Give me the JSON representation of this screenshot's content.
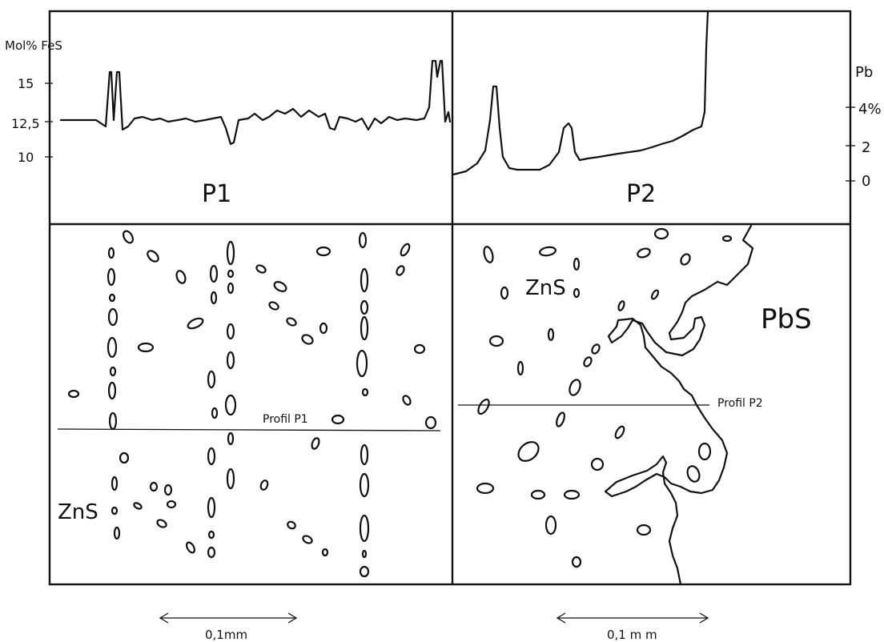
{
  "left_axis": {
    "unit_label": "Mol% FeS",
    "ticks": [
      "15",
      "12,5",
      "10"
    ]
  },
  "right_axis": {
    "element_label": "Pb",
    "ticks": [
      "4%",
      "2",
      "0"
    ]
  },
  "panels": {
    "p1": {
      "label": "P1",
      "phase_label": "ZnS",
      "profile_label": "Profil P1",
      "scale_label": "0,1mm"
    },
    "p2": {
      "label": "P2",
      "phase_label_left": "ZnS",
      "phase_label_right": "PbS",
      "profile_label": "Profil P2",
      "scale_label": "0,1 m m"
    }
  },
  "chart_data": [
    {
      "type": "line",
      "panel": "P1",
      "ylabel": "Mol% FeS",
      "y_ticks": [
        15,
        12.5,
        10
      ],
      "ylim": [
        8,
        18
      ],
      "x": [
        0,
        5,
        10,
        12,
        12.5,
        13,
        14,
        15,
        20,
        25,
        30,
        35,
        38,
        40,
        42,
        45,
        50,
        55,
        60,
        65,
        70,
        75,
        80,
        85,
        90,
        95,
        96,
        97,
        98,
        99,
        100
      ],
      "values": [
        12.6,
        12.6,
        12.5,
        16,
        12,
        12.3,
        12.8,
        12.6,
        12.4,
        12.6,
        12.3,
        10.8,
        12.5,
        12.7,
        12.6,
        13.0,
        12.8,
        13.2,
        13.0,
        12.8,
        12.0,
        12.9,
        12.6,
        12.1,
        13.0,
        12.8,
        16.5,
        12.6,
        17,
        12.4,
        12.6
      ]
    },
    {
      "type": "line",
      "panel": "P2",
      "ylabel": "Pb",
      "y_ticks": [
        4,
        2,
        0
      ],
      "x": [
        0,
        5,
        8,
        10,
        12,
        20,
        25,
        28,
        30,
        35,
        40,
        50,
        60,
        70,
        80,
        85,
        86,
        87
      ],
      "values": [
        0.3,
        0.8,
        2,
        5.2,
        0.8,
        0.7,
        1.2,
        3.0,
        1.5,
        1.0,
        1.1,
        1.3,
        1.7,
        2.1,
        2.6,
        3.0,
        12,
        16
      ]
    }
  ]
}
